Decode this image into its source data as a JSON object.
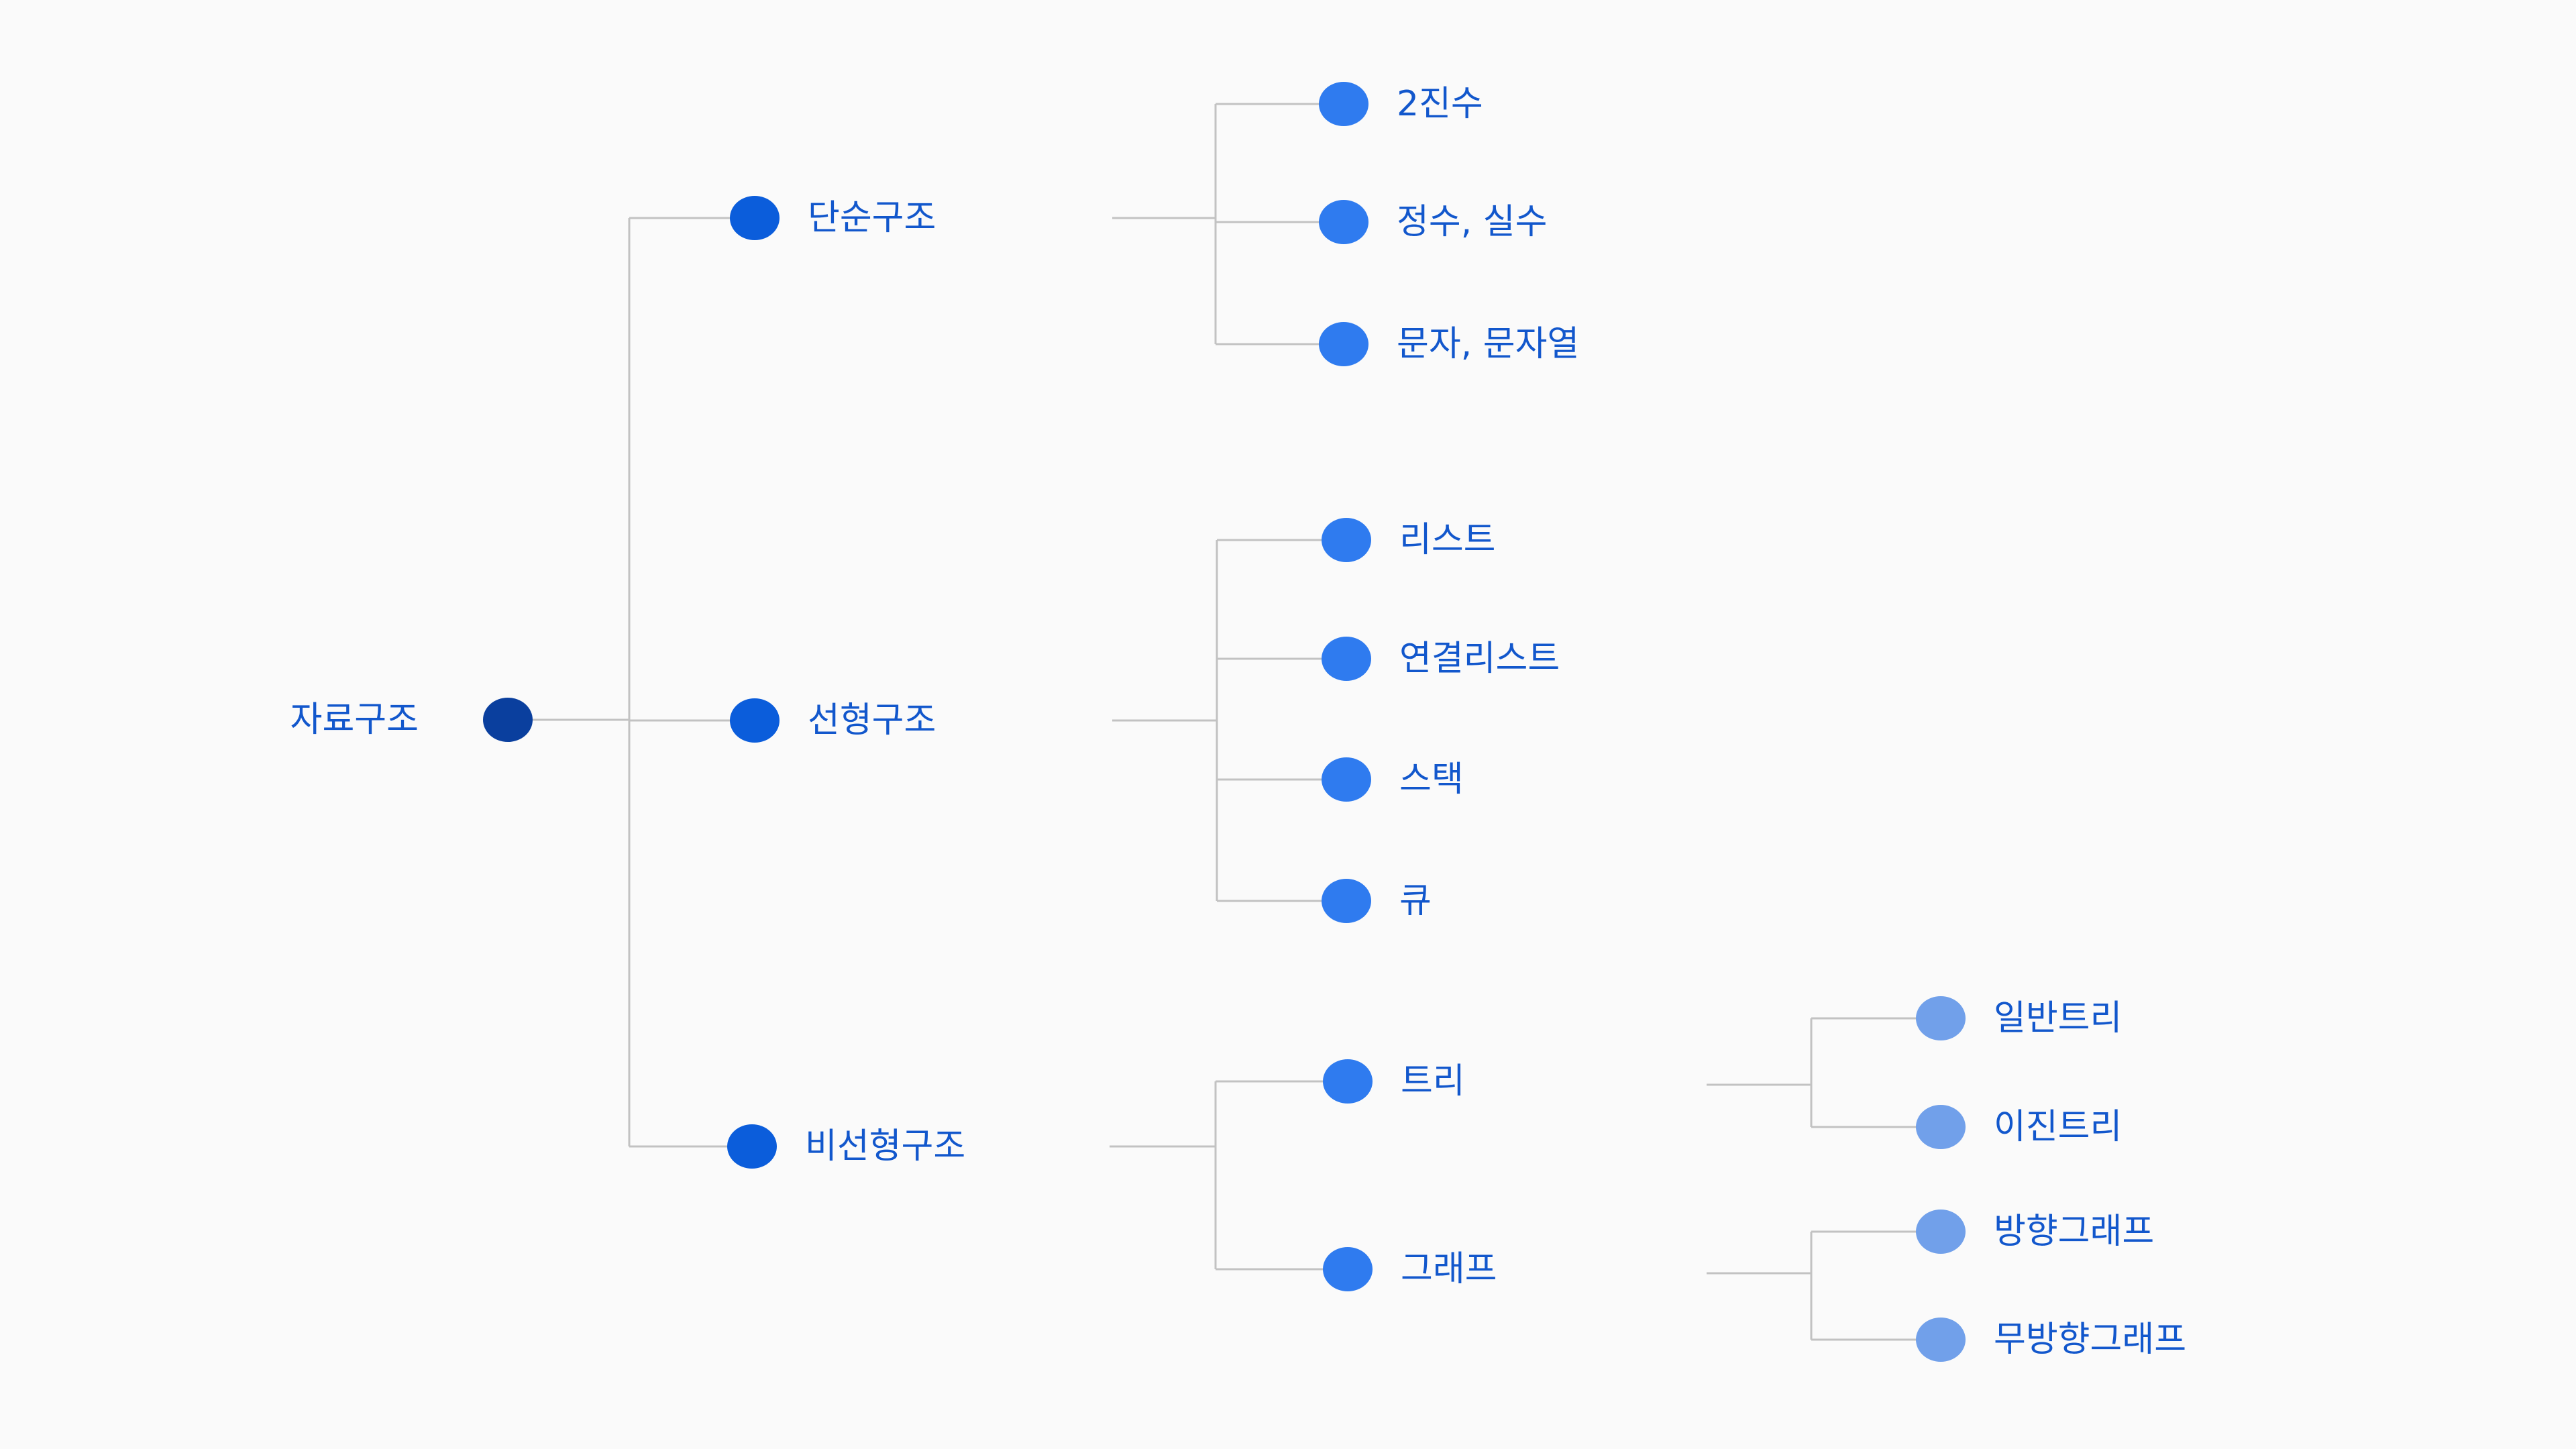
{
  "colors": {
    "background": "#fafafa",
    "connector": "#c2c2c2",
    "label": "#1257cc",
    "dot_root": "#0a3f9e",
    "dot_level1": "#0b5ddb",
    "dot_level2": "#2f7bef",
    "dot_level3": "#71a0ea"
  },
  "tree": {
    "root": {
      "label": "자료구조"
    },
    "branches": [
      {
        "label": "단순구조",
        "children": [
          {
            "label": "2진수"
          },
          {
            "label": "정수, 실수"
          },
          {
            "label": "문자, 문자열"
          }
        ]
      },
      {
        "label": "선형구조",
        "children": [
          {
            "label": "리스트"
          },
          {
            "label": "연결리스트"
          },
          {
            "label": "스택"
          },
          {
            "label": "큐"
          }
        ]
      },
      {
        "label": "비선형구조",
        "children": [
          {
            "label": "트리",
            "children": [
              {
                "label": "일반트리"
              },
              {
                "label": "이진트리"
              }
            ]
          },
          {
            "label": "그래프",
            "children": [
              {
                "label": "방향그래프"
              },
              {
                "label": "무방향그래프"
              }
            ]
          }
        ]
      }
    ]
  }
}
